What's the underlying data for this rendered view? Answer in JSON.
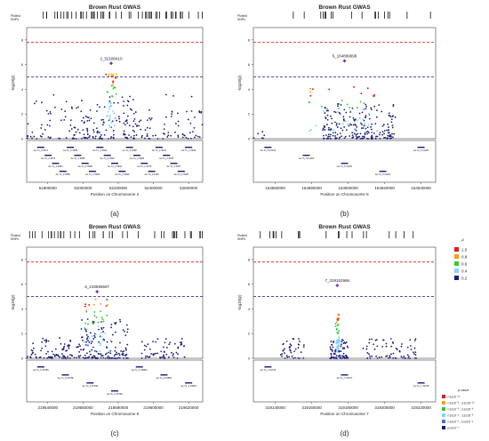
{
  "panels": [
    {
      "label": "(a)",
      "title": "Brown Rust GWAS",
      "xlabel": "Position on Chromosome 2",
      "ylabel": "-log10(p)",
      "plotted_label": [
        "Plotted",
        "SNPs"
      ],
      "lead_snp": "2_52180410",
      "xticks": [
        "51800000",
        "52000000",
        "52200000",
        "52400000",
        "52600000"
      ],
      "yticks": [
        "0",
        "2",
        "4",
        "6",
        "8"
      ],
      "genes": [
        "Ae.Tu_2.3672",
        "Ae.Tu_2.3673",
        "Ae.Tu_2.3684",
        "Ae.Tu_2.3685",
        "Ae.Tu_2.3686",
        "Ae.Tu_2.3688",
        "Ae.Tu_2.3689",
        "Ae.Tu_2.3690",
        "Ae.Tu_2.3691",
        "Ae.Tu_2.3692",
        "Ae.Tu_2.3694",
        "Ae.Tu_2.3696",
        "Ae.Tu_2.3698",
        "Ae.Tu_2.3699",
        "Ae.Tu_2.3700",
        "Ae.Tu_2.3702",
        "Ae.Tu_2.3624",
        "Ae.Tu_2.3625",
        "Ae.Tu_2.3627",
        "Ae.Tu_2.3628",
        "Ae.Tu_2.3623"
      ]
    },
    {
      "label": "(b)",
      "title": "Brown Rust GWAS",
      "xlabel": "Position on Chromosome 5",
      "ylabel": "-log10(p)",
      "plotted_label": [
        "Plotted",
        "SNPs"
      ],
      "lead_snp": "5_164899699",
      "xticks": [
        "164860000",
        "164880000",
        "164900000",
        "164920000",
        "164940000"
      ],
      "yticks": [
        "0",
        "2",
        "4",
        "6",
        "8"
      ],
      "genes": [
        "Ae.Tu_5.11010",
        "Ae.Tu_5.11020",
        "Ae.Tu_5.11021",
        "Ae.Tu_5.11022",
        "Ae.Tu_5.11023"
      ]
    },
    {
      "label": "(c)",
      "title": "Brown Rust GWAS",
      "xlabel": "Position on Chromosome 6",
      "ylabel": "-log10(p)",
      "plotted_label": [
        "Plotted",
        "SNPs"
      ],
      "lead_snp": "6_219585597",
      "xticks": [
        "219540000",
        "219560000",
        "219580000",
        "219600000",
        "219620000"
      ],
      "yticks": [
        "0",
        "2",
        "4",
        "6",
        "8"
      ],
      "genes": [
        "Ae.Tu_6.15785",
        "Ae.Tu_6.15788",
        "Ae.Tu_6.15789",
        "Ae.Tu_6.15790",
        "Ae.Tu_6.15800",
        "Ae.Tu_6.15851",
        "Ae.Tu_6.15852"
      ]
    },
    {
      "label": "(d)",
      "title": "Brown Rust GWAS",
      "xlabel": "Position on Chromosome 7",
      "ylabel": "-log10(p)",
      "plotted_label": [
        "Plotted",
        "SNPs"
      ],
      "lead_snp": "7_319181966",
      "xticks": [
        "319140000",
        "319160000",
        "319180000",
        "319200000",
        "319220000"
      ],
      "yticks": [
        "0",
        "2",
        "4",
        "6",
        "8"
      ],
      "genes": [
        "Ae.Tu_7.22703",
        "Ae.Tu_7.22707",
        "Ae.Tu_7.22708"
      ]
    }
  ],
  "r2_legend": {
    "title": "r²",
    "values": [
      "1.0",
      "0.8",
      "0.6",
      "0.4",
      "0.2"
    ],
    "colors": [
      "#e41a1c",
      "#ff9f00",
      "#33cc33",
      "#7ed6ff",
      "#1c1c7a"
    ]
  },
  "pvalue_legend": {
    "title": "p-value",
    "values": [
      "<1x10⁻¹⁰",
      "<1x10⁻⁸ ; ≥1x10⁻¹⁰",
      "<1x10⁻⁶ ; ≥1x10⁻⁸",
      "<1x10⁻⁴ ; ≥1x10⁻⁶",
      "<1x10⁻² ; ≥1x10⁻⁴",
      "≥1x10⁻²"
    ],
    "colors": [
      "#e41a1c",
      "#ff9f00",
      "#33cc33",
      "#7ed6ff",
      "#4a6fd6",
      "#1c1c7a"
    ]
  },
  "chart_data": [
    {
      "type": "scatter",
      "title": "Brown Rust GWAS",
      "xlabel": "Position on Chromosome 2",
      "ylabel": "-log10(p)",
      "xlim": [
        51700000,
        52700000
      ],
      "ylim": [
        0,
        8
      ],
      "lead_snp": {
        "name": "2_52180410",
        "x": 52180410,
        "y": 6.1
      },
      "significance_lines": [
        7.8,
        5.0
      ],
      "max_neighbor_y": 5.4
    },
    {
      "type": "scatter",
      "title": "Brown Rust GWAS",
      "xlabel": "Position on Chromosome 5",
      "ylabel": "-log10(p)",
      "xlim": [
        164850000,
        164950000
      ],
      "ylim": [
        0,
        8
      ],
      "lead_snp": {
        "name": "5_164899699",
        "x": 164899699,
        "y": 6.3
      },
      "significance_lines": [
        7.8,
        5.0
      ],
      "max_neighbor_y": 4.3
    },
    {
      "type": "scatter",
      "title": "Brown Rust GWAS",
      "xlabel": "Position on Chromosome 6",
      "ylabel": "-log10(p)",
      "xlim": [
        219530000,
        219630000
      ],
      "ylim": [
        0,
        8
      ],
      "lead_snp": {
        "name": "6_219585597",
        "x": 219585597,
        "y": 5.4
      },
      "significance_lines": [
        7.8,
        5.0
      ],
      "max_neighbor_y": 4.8
    },
    {
      "type": "scatter",
      "title": "Brown Rust GWAS",
      "xlabel": "Position on Chromosome 7",
      "ylabel": "-log10(p)",
      "xlim": [
        319130000,
        319230000
      ],
      "ylim": [
        0,
        8
      ],
      "lead_snp": {
        "name": "7_319181966",
        "x": 319181966,
        "y": 5.9
      },
      "significance_lines": [
        7.8,
        5.0
      ],
      "max_neighbor_y": 3.6
    }
  ]
}
